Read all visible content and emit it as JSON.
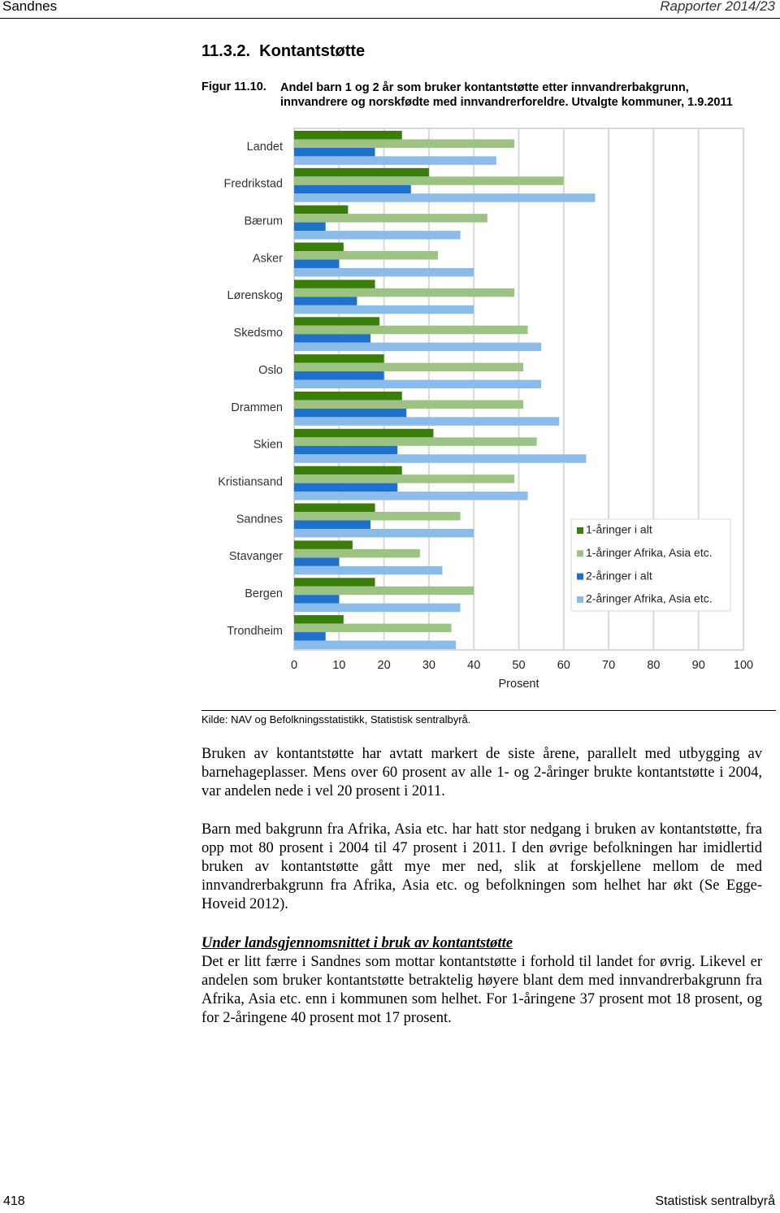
{
  "header": {
    "left": "Sandnes",
    "right": "Rapporter 2014/23"
  },
  "section_title": "11.3.2.  Kontantstøtte",
  "figure_label": "Figur 11.10.",
  "chart_data": {
    "type": "bar",
    "orientation": "horizontal",
    "title": "Andel barn 1 og 2 år som bruker kontantstøtte etter innvandrerbakgrunn, innvandrere og norskfødte med innvandrerforeldre. Utvalgte kommuner, 1.9.2011",
    "categories": [
      "Landet",
      "Fredrikstad",
      "Bærum",
      "Asker",
      "Lørenskog",
      "Skedsmo",
      "Oslo",
      "Drammen",
      "Skien",
      "Kristiansand",
      "Sandnes",
      "Stavanger",
      "Bergen",
      "Trondheim"
    ],
    "series": [
      {
        "name": "1-åringer i alt",
        "color": "#3a7d0a",
        "values": [
          24,
          30,
          12,
          11,
          18,
          19,
          20,
          24,
          31,
          24,
          18,
          13,
          18,
          11
        ]
      },
      {
        "name": "1-åringer Afrika, Asia etc.",
        "color": "#9cc383",
        "values": [
          49,
          60,
          43,
          32,
          49,
          52,
          51,
          51,
          54,
          49,
          37,
          28,
          40,
          35
        ]
      },
      {
        "name": "2-åringer i alt",
        "color": "#1f72cc",
        "values": [
          18,
          26,
          7,
          10,
          14,
          17,
          20,
          25,
          23,
          23,
          17,
          10,
          10,
          7
        ]
      },
      {
        "name": "2-åringer Afrika, Asia etc.",
        "color": "#8bbbe8",
        "values": [
          45,
          67,
          37,
          40,
          40,
          55,
          55,
          59,
          65,
          52,
          40,
          33,
          37,
          36
        ]
      }
    ],
    "xlim": [
      0,
      100
    ],
    "xticks": [
      0,
      10,
      20,
      30,
      40,
      50,
      60,
      70,
      80,
      90,
      100
    ],
    "xlabel": "Prosent",
    "grid": true,
    "legend": "lower-right"
  },
  "source": "Kilde: NAV og Befolkningsstatistikk, Statistisk sentralbyrå.",
  "paragraphs": [
    "Bruken av kontantstøtte har avtatt markert de siste årene, parallelt med utbygging av barnehageplasser. Mens over 60 prosent av alle 1- og 2-åringer brukte kontantstøtte i 2004, var andelen nede i vel 20 prosent i 2011.",
    "Barn med bakgrunn fra Afrika, Asia etc. har hatt stor nedgang i bruken av kontantstøtte, fra opp mot 80 prosent i 2004 til 47 prosent i 2011. I den øvrige befolkningen har imidlertid bruken av kontantstøtte gått mye mer ned, slik at forskjellene mellom de med innvandrerbakgrunn fra Afrika, Asia etc. og befolkningen som helhet har økt (Se Egge-Hoveid 2012)."
  ],
  "subheading": "Under landsgjennomsnittet i bruk av kontantstøtte",
  "paragraph_after": "Det er litt færre i Sandnes som mottar kontantstøtte i forhold til landet for øvrig. Likevel er andelen som bruker kontantstøtte betraktelig høyere blant dem med innvandrerbakgrunn fra Afrika, Asia etc. enn i kommunen som helhet. For 1-åringene 37 prosent mot 18 prosent, og for 2-åringene 40 prosent mot 17 prosent.",
  "footer": {
    "page": "418",
    "publisher": "Statistisk sentralbyrå"
  }
}
